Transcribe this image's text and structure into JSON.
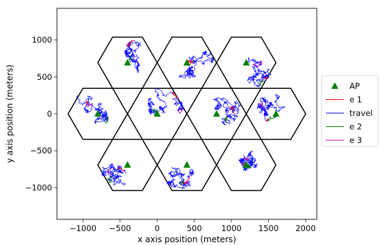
{
  "chart_data": {
    "type": "scatter",
    "title": "",
    "xlabel": "x axis position (meters)",
    "ylabel": "y axis position (meters)",
    "xlim": [
      -1350,
      2150
    ],
    "ylim": [
      -1430,
      1430
    ],
    "xticks": [
      -1000,
      -500,
      0,
      500,
      1000,
      1500,
      2000
    ],
    "yticks": [
      -1000,
      -500,
      0,
      500,
      1000
    ],
    "xtick_labels": [
      "−1000",
      "−500",
      "0",
      "500",
      "1000",
      "1500",
      "2000"
    ],
    "ytick_labels": [
      "−1000",
      "−500",
      "0",
      "500",
      "1000"
    ],
    "grid": false,
    "legend_position": "outside-right",
    "hexagon_radius": 400,
    "colors": {
      "ap": "#008000",
      "e1": "#ff0000",
      "travel": "#0000ff",
      "e2": "#008000",
      "e3": "#bf00bf",
      "hex": "#000000"
    },
    "series": [
      {
        "name": "AP",
        "marker": "triangle",
        "points": [
          [
            -400,
            693
          ],
          [
            400,
            693
          ],
          [
            1200,
            693
          ],
          [
            -800,
            0
          ],
          [
            0,
            0
          ],
          [
            800,
            0
          ],
          [
            1600,
            0
          ],
          [
            -400,
            -693
          ],
          [
            400,
            -693
          ],
          [
            1200,
            -693
          ]
        ]
      },
      {
        "name": "e 1",
        "style": "line"
      },
      {
        "name": "travel",
        "style": "line"
      },
      {
        "name": "e 2",
        "style": "line"
      },
      {
        "name": "e 3",
        "style": "line"
      }
    ]
  }
}
